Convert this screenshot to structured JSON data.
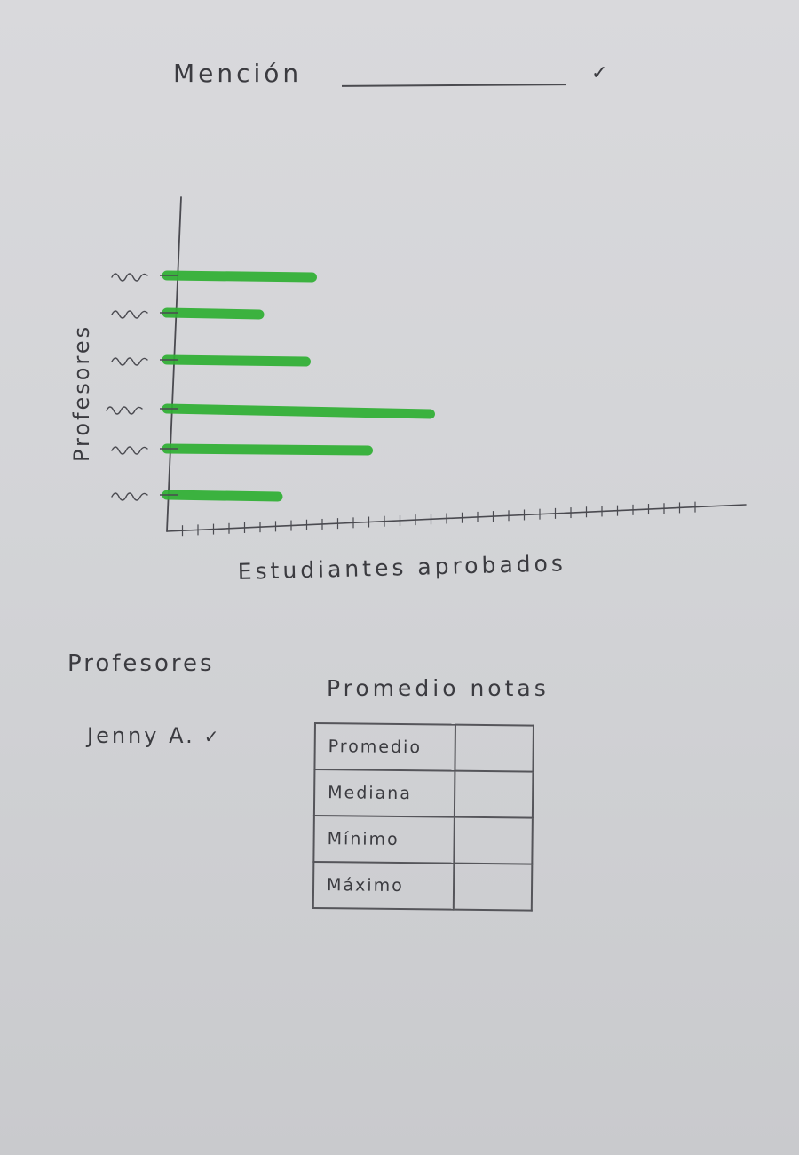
{
  "header": {
    "mencion_label": "Mención",
    "dropdown_value": "",
    "dropdown_arrow": "✓"
  },
  "chart_data": {
    "type": "bar",
    "orientation": "horizontal",
    "ylabel": "Profesores",
    "xlabel": "Estudiantes aprobados",
    "categories": [
      "",
      "",
      "",
      "",
      "",
      ""
    ],
    "values": [
      8.2,
      4.8,
      7.8,
      15.8,
      11.8,
      6.0
    ],
    "xlim": [
      0,
      35
    ],
    "bar_color": "#2fb033",
    "grid": false
  },
  "filters": {
    "profesores_label": "Profesores",
    "profesor_selected": "Jenny A.",
    "profesor_arrow": "✓"
  },
  "stats": {
    "title": "Promedio notas",
    "rows": [
      {
        "label": "Promedio",
        "value": ""
      },
      {
        "label": "Mediana",
        "value": ""
      },
      {
        "label": "Mínimo",
        "value": ""
      },
      {
        "label": "Máximo",
        "value": ""
      }
    ]
  }
}
